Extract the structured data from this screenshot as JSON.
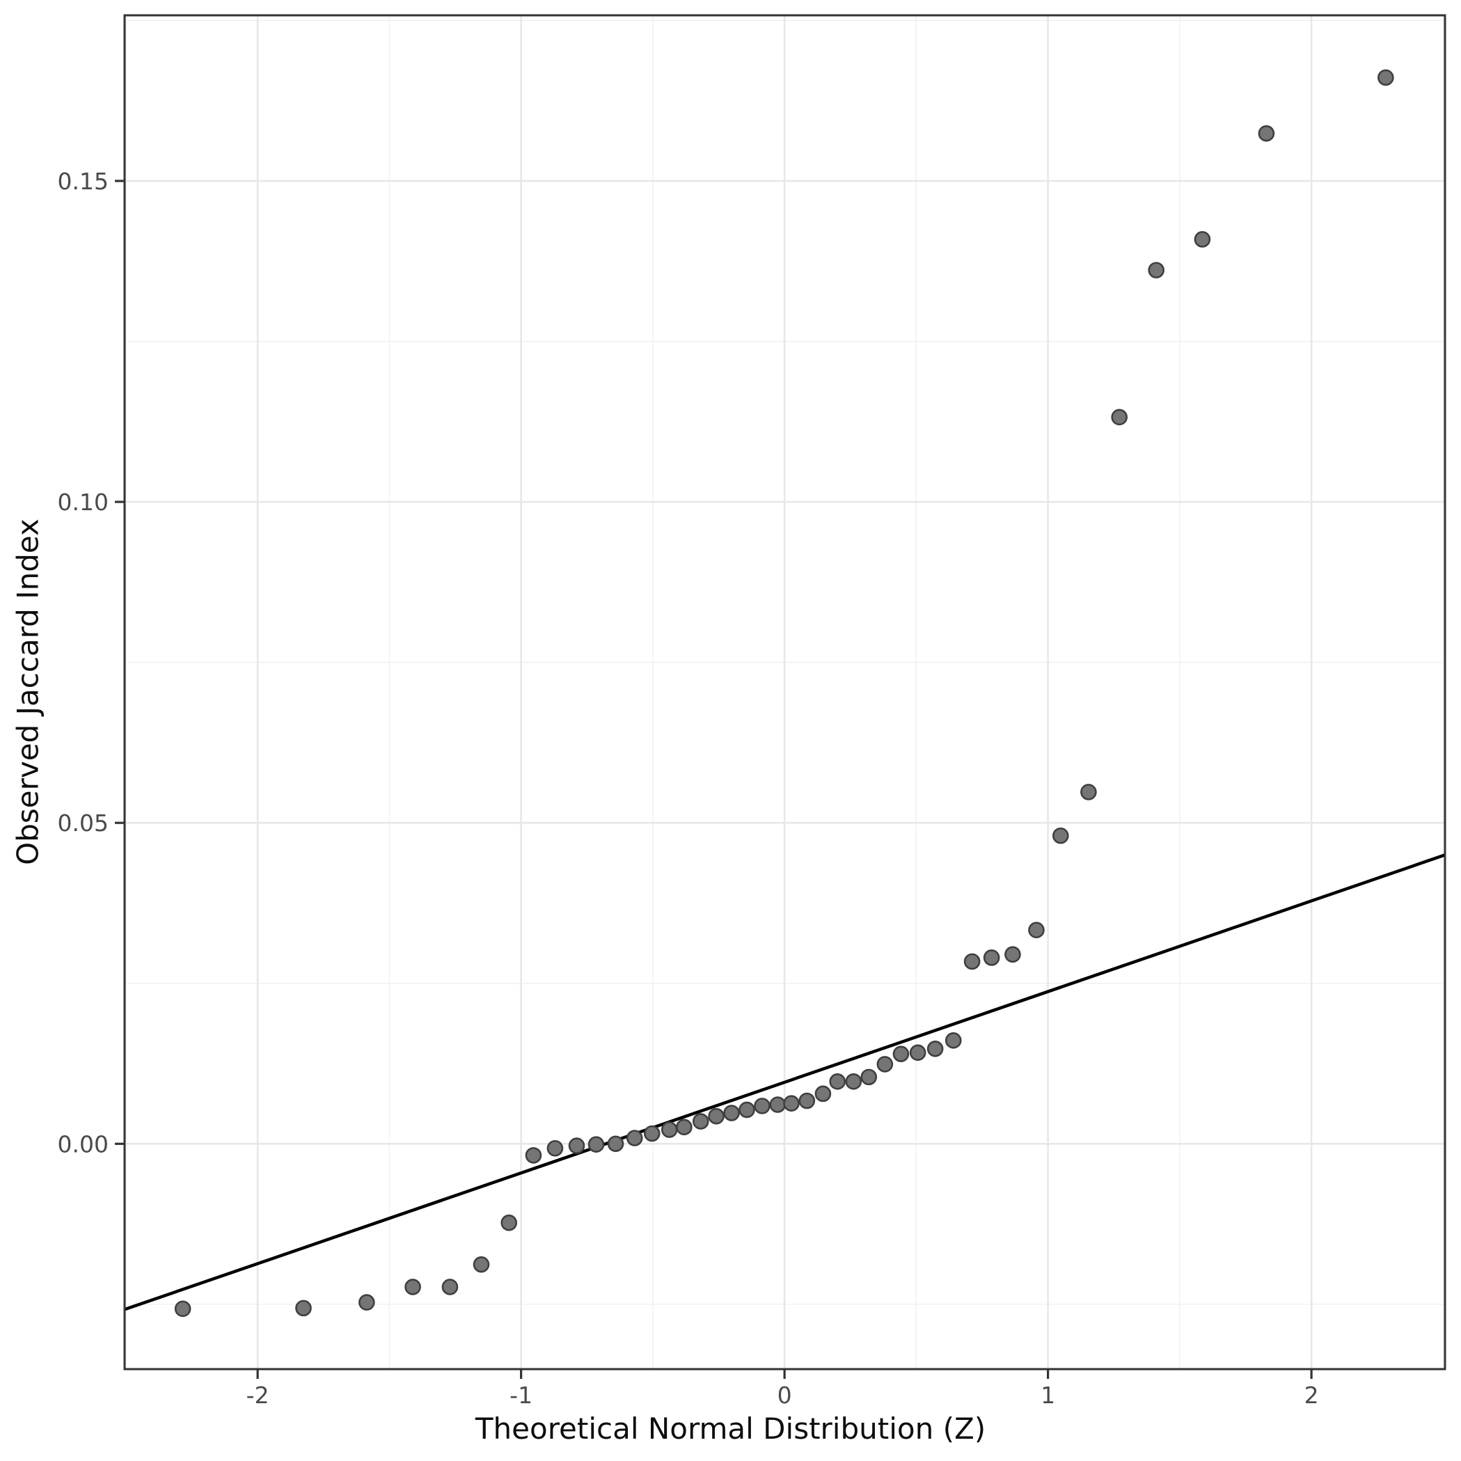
{
  "chart_data": {
    "type": "scatter",
    "title": "",
    "xlabel": "Theoretical Normal Distribution (Z)",
    "ylabel": "Observed Jaccard Index",
    "x_range": [
      -2.505,
      2.507
    ],
    "y_range": [
      -0.0351,
      0.1758
    ],
    "grid": "on",
    "legend": "none",
    "x_ticks": [
      {
        "value": -2,
        "label": "-2"
      },
      {
        "value": -1,
        "label": "-1"
      },
      {
        "value": 0,
        "label": "0"
      },
      {
        "value": 1,
        "label": "1"
      },
      {
        "value": 2,
        "label": "2"
      }
    ],
    "y_ticks": [
      {
        "value": 0.0,
        "label": "0.00"
      },
      {
        "value": 0.05,
        "label": "0.05"
      },
      {
        "value": 0.1,
        "label": "0.10"
      },
      {
        "value": 0.15,
        "label": "0.15"
      }
    ],
    "x_minor": [
      -2.5,
      -1.5,
      -0.5,
      0.5,
      1.5,
      2.5
    ],
    "y_minor": [
      -0.025,
      0.025,
      0.075,
      0.125,
      0.175
    ],
    "points": [
      [
        -2.284,
        -0.0257
      ],
      [
        -1.826,
        -0.0256
      ],
      [
        -1.586,
        -0.0247
      ],
      [
        -1.411,
        -0.0223
      ],
      [
        -1.27,
        -0.0223
      ],
      [
        -1.151,
        -0.0188
      ],
      [
        -1.046,
        -0.0123
      ],
      [
        -0.953,
        -0.0018
      ],
      [
        -0.871,
        -0.0007
      ],
      [
        -0.789,
        -0.0003
      ],
      [
        -0.715,
        -0.0001
      ],
      [
        -0.641,
        0.0
      ],
      [
        -0.569,
        0.0009
      ],
      [
        -0.503,
        0.0016
      ],
      [
        -0.437,
        0.0022
      ],
      [
        -0.381,
        0.0026
      ],
      [
        -0.318,
        0.0035
      ],
      [
        -0.259,
        0.0043
      ],
      [
        -0.201,
        0.0048
      ],
      [
        -0.143,
        0.0053
      ],
      [
        -0.085,
        0.0059
      ],
      [
        -0.026,
        0.0061
      ],
      [
        0.026,
        0.0063
      ],
      [
        0.085,
        0.0067
      ],
      [
        0.146,
        0.0078
      ],
      [
        0.201,
        0.0097
      ],
      [
        0.262,
        0.0097
      ],
      [
        0.32,
        0.0104
      ],
      [
        0.381,
        0.0124
      ],
      [
        0.442,
        0.014
      ],
      [
        0.506,
        0.0142
      ],
      [
        0.572,
        0.0148
      ],
      [
        0.641,
        0.0161
      ],
      [
        0.712,
        0.0284
      ],
      [
        0.786,
        0.029
      ],
      [
        0.866,
        0.0295
      ],
      [
        0.956,
        0.0333
      ],
      [
        1.048,
        0.048
      ],
      [
        1.154,
        0.0548
      ],
      [
        1.271,
        0.1132
      ],
      [
        1.411,
        0.1361
      ],
      [
        1.586,
        0.1409
      ],
      [
        1.829,
        0.1574
      ],
      [
        2.282,
        0.1661
      ]
    ],
    "reference_line": {
      "x1": -2.505,
      "y1": -0.0258,
      "x2": 2.507,
      "y2": 0.045
    },
    "colors": {
      "point_fill": "#757575",
      "point_stroke": "#3F3F3F",
      "reference_line": "#000000",
      "grid_major": "#E7E7E7",
      "grid_minor": "#F0F0F0",
      "panel_border": "#333333",
      "tick_mark": "#333333",
      "tick_label": "#4A4A4A",
      "axis_title": "#0D0D0D",
      "background": "#FFFFFF"
    }
  }
}
